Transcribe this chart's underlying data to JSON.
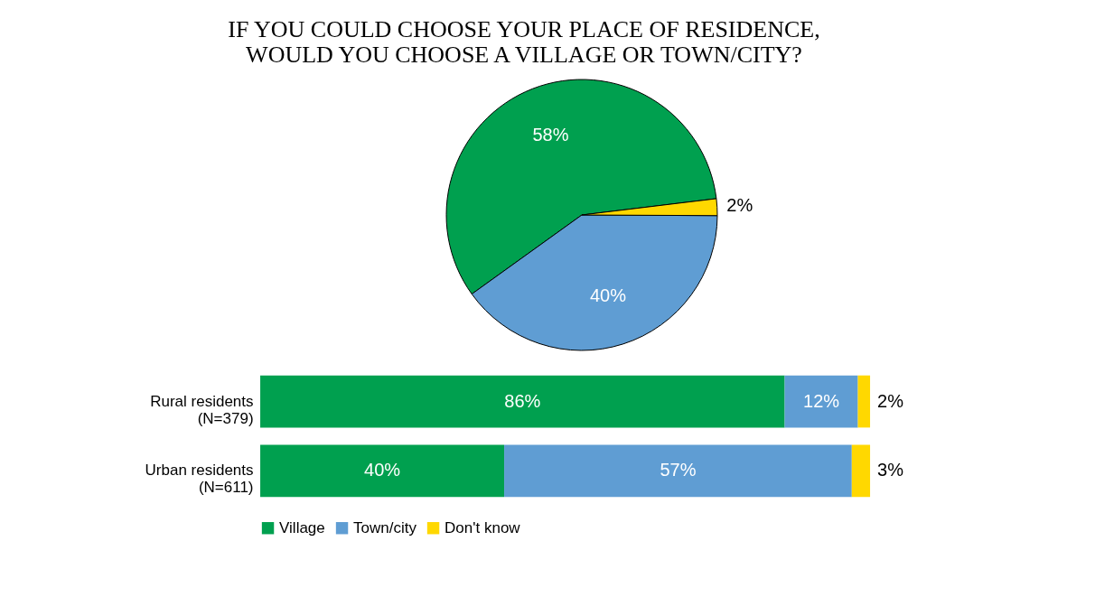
{
  "chart_data": [
    {
      "type": "pie",
      "title": "IF YOU COULD CHOOSE YOUR PLACE OF RESIDENCE,\nWOULD YOU CHOOSE A VILLAGE OR TOWN/CITY?",
      "categories": [
        "Village",
        "Town/city",
        "Don't know"
      ],
      "values": [
        58,
        40,
        2
      ],
      "colors": [
        "#00a04f",
        "#5f9dd3",
        "#ffd800"
      ],
      "value_labels": [
        "58%",
        "40%",
        "2%"
      ],
      "legend": "bottom"
    },
    {
      "type": "bar",
      "orientation": "horizontal",
      "stacked": true,
      "legend": "bottom",
      "categories": [
        "Rural residents\n(N=379)",
        "Urban residents\n(N=611)"
      ],
      "series": [
        {
          "name": "Village",
          "color": "#00a04f",
          "values": [
            86,
            40
          ],
          "value_labels": [
            "86%",
            "40%"
          ]
        },
        {
          "name": "Town/city",
          "color": "#5f9dd3",
          "values": [
            12,
            57
          ],
          "value_labels": [
            "12%",
            "57%"
          ]
        },
        {
          "name": "Don't know",
          "color": "#ffd800",
          "values": [
            2,
            3
          ],
          "value_labels": [
            "2%",
            "3%"
          ]
        }
      ]
    }
  ]
}
